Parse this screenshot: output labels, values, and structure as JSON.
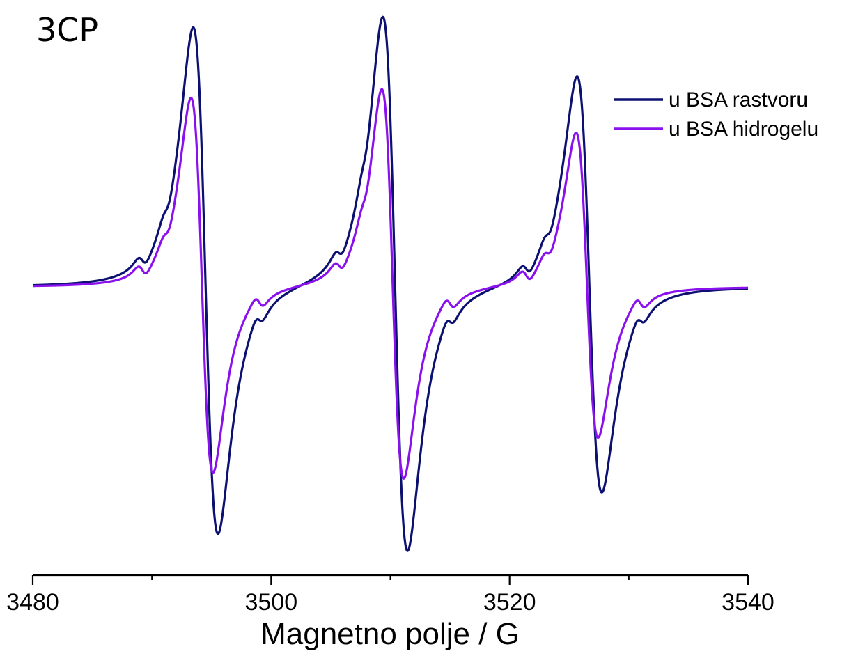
{
  "chart_data": {
    "type": "line",
    "title": "3CP",
    "xlabel": "Magnetno polje / G",
    "ylabel": "",
    "xlim": [
      3480,
      3540
    ],
    "ylim": [
      -1.03,
      1.03
    ],
    "x_ticks": [
      3480,
      3500,
      3520,
      3540
    ],
    "x_minor_ticks": [
      3490,
      3510,
      3530
    ],
    "legend_position": "top-right",
    "grid": false,
    "series": [
      {
        "name": "u BSA rastvoru",
        "color": "#0c1070",
        "lines": [
          {
            "center": 3494.5,
            "width": 1.8,
            "pos_peak": 1.0,
            "neg_peak": -0.96
          },
          {
            "center": 3510.4,
            "width": 1.8,
            "pos_peak": 1.05,
            "neg_peak": -1.02
          },
          {
            "center": 3526.7,
            "width": 1.8,
            "pos_peak": 0.82,
            "neg_peak": -0.79
          }
        ]
      },
      {
        "name": "u BSA hidrogelu",
        "color": "#8b10ee",
        "lines": [
          {
            "center": 3494.2,
            "width": 1.6,
            "pos_peak": 0.73,
            "neg_peak": -0.72
          },
          {
            "center": 3510.2,
            "width": 1.6,
            "pos_peak": 0.77,
            "neg_peak": -0.74
          },
          {
            "center": 3526.5,
            "width": 1.6,
            "pos_peak": 0.6,
            "neg_peak": -0.58
          }
        ]
      }
    ]
  }
}
